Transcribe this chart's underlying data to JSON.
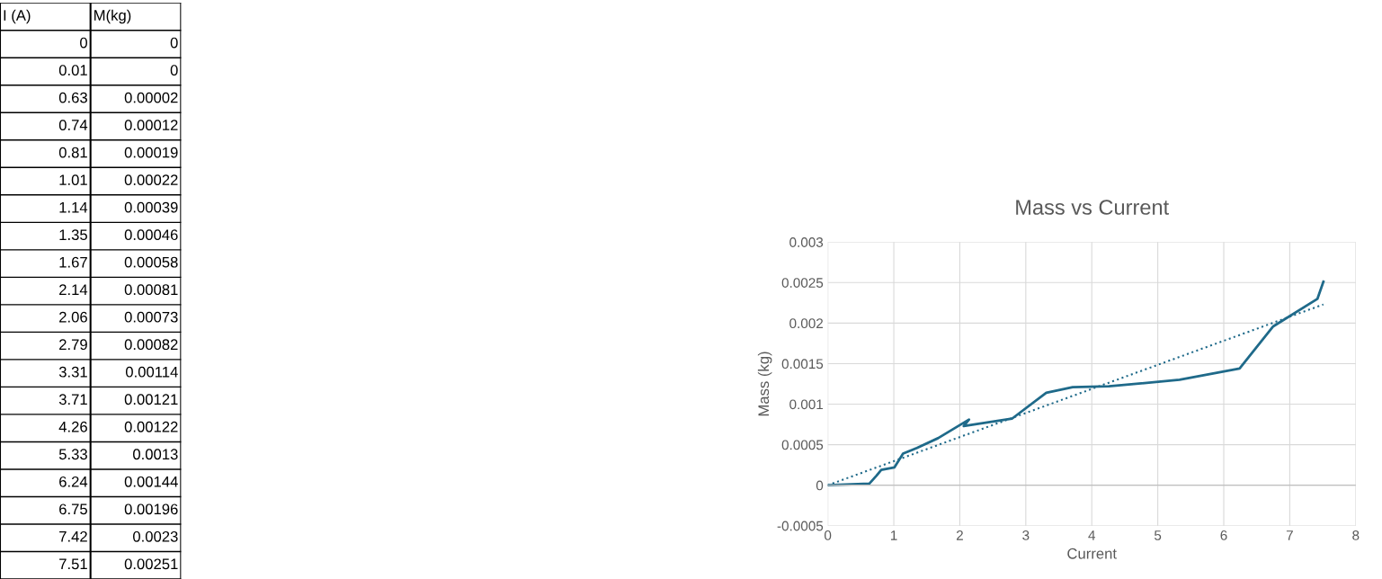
{
  "chart_data": {
    "type": "line",
    "title": "Mass vs Current",
    "xlabel": "Current",
    "ylabel": "Mass (kg)",
    "annotations": [
      "I (A)",
      "M(kg)",
      "0",
      "0",
      "0.01",
      "0",
      "0.63",
      "0.00002",
      "0.74",
      "0.00012",
      "0.81",
      "0.00019",
      "1.01",
      "0.00022",
      "1.14",
      "0.00039",
      "1.35",
      "0.00046",
      "1.67",
      "0.00058",
      "2.14",
      "0.00081",
      "2.06",
      "0.00073",
      "2.79",
      "0.00082",
      "3.31",
      "0.00114",
      "3.71",
      "0.00121",
      "4.26",
      "0.00122",
      "5.33",
      "0.0013",
      "6.24",
      "0.00144",
      "6.75",
      "0.00196",
      "7.42",
      "0.0023",
      "7.51",
      "0.00251"
    ],
    "series": [
      {
        "color": "#1f6a8a",
        "x": [
          0,
          0.01,
          0.63,
          0.74,
          0.81,
          1.01,
          1.14,
          1.35,
          1.67,
          2.14,
          2.06,
          2.79,
          3.31,
          3.71,
          4.26,
          5.33,
          6.24,
          6.75,
          7.42,
          7.51
        ],
        "values": [
          0,
          0,
          2e-05,
          0.00012,
          0.00019,
          0.00022,
          0.00039,
          0.00046,
          0.00058,
          0.00081,
          0.00073,
          0.00082,
          0.00114,
          0.00121,
          0.00122,
          0.0013,
          0.00144,
          0.00196,
          0.0023,
          0.00251
        ]
      },
      {
        "type": "line",
        "color": "#1f6a8a",
        "line_style": "dotted",
        "x": [
          0,
          7.51
        ],
        "values": [
          0,
          0.00223
        ]
      }
    ],
    "xlim": [
      0,
      8
    ],
    "xticks": [
      0,
      1,
      2,
      3,
      4,
      5,
      6,
      7,
      8
    ],
    "ylim": [
      -0.0005,
      0.003
    ],
    "yticks": [
      -0.0005,
      0,
      0.0005,
      0.001,
      0.0015,
      0.002,
      0.0025,
      0.003
    ],
    "grid": true
  }
}
